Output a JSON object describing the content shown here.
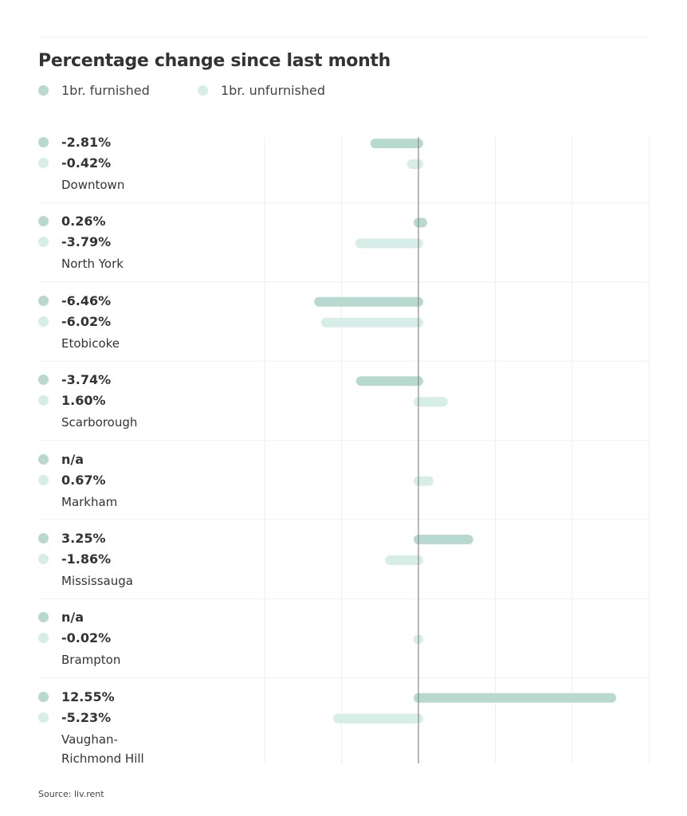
{
  "chart_data": {
    "type": "bar",
    "orientation": "horizontal",
    "title": "Percentage change since last month",
    "source": "Source: liv.rent",
    "xlim": [
      -15,
      15
    ],
    "grid_step": 5,
    "grid": true,
    "legend_placement": "top-left",
    "series": [
      {
        "name": "1br. furnished",
        "color": "#b8d9cf",
        "values": [
          -2.81,
          0.26,
          -6.46,
          -3.74,
          null,
          3.25,
          null,
          12.55
        ],
        "labels": [
          "-2.81%",
          "0.26%",
          "-6.46%",
          "-3.74%",
          "n/a",
          "3.25%",
          "n/a",
          "12.55%"
        ]
      },
      {
        "name": "1br. unfurnished",
        "color": "#d6eee7",
        "values": [
          -0.42,
          -3.79,
          -6.02,
          1.6,
          0.67,
          -1.86,
          -0.02,
          -5.23
        ],
        "labels": [
          "-0.42%",
          "-3.79%",
          "-6.02%",
          "1.60%",
          "0.67%",
          "-1.86%",
          "-0.02%",
          "-5.23%"
        ]
      }
    ],
    "categories": [
      "Downtown",
      "North York",
      "Etobicoke",
      "Scarborough",
      "Markham",
      "Mississauga",
      "Brampton",
      "Vaughan-\nRichmond Hill"
    ]
  }
}
